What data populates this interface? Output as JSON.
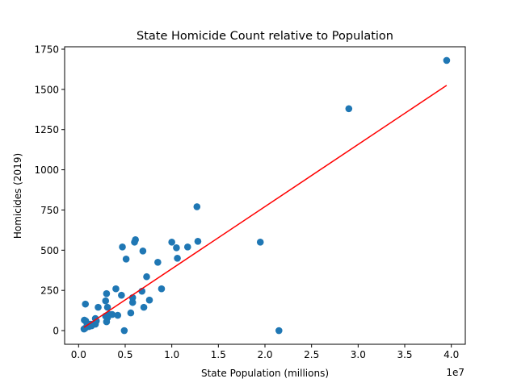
{
  "chart_data": {
    "type": "scatter",
    "title": "State Homicide Count relative to Population",
    "xlabel": "State Population (millions)",
    "ylabel": "Homicides (2019)",
    "x_offset_text": "1e7",
    "xlim": [
      -1500000,
      41500000
    ],
    "ylim": [
      -85,
      1765
    ],
    "xticks": [
      0,
      5000000,
      10000000,
      15000000,
      20000000,
      25000000,
      30000000,
      35000000,
      40000000
    ],
    "xtick_labels": [
      "0.0",
      "0.5",
      "1.0",
      "1.5",
      "2.0",
      "2.5",
      "3.0",
      "3.5",
      "4.0"
    ],
    "yticks": [
      0,
      250,
      500,
      750,
      1000,
      1250,
      1500,
      1750
    ],
    "ytick_labels": [
      "0",
      "250",
      "500",
      "750",
      "1000",
      "1250",
      "1500",
      "1750"
    ],
    "grid": false,
    "series": [
      {
        "type": "scatter",
        "color": "#1f77b4",
        "points": [
          [
            39500000,
            1680
          ],
          [
            29000000,
            1380
          ],
          [
            21500000,
            0
          ],
          [
            19500000,
            550
          ],
          [
            12800000,
            555
          ],
          [
            12700000,
            770
          ],
          [
            11700000,
            520
          ],
          [
            10600000,
            450
          ],
          [
            10500000,
            515
          ],
          [
            10000000,
            550
          ],
          [
            8900000,
            260
          ],
          [
            8500000,
            425
          ],
          [
            7600000,
            190
          ],
          [
            7300000,
            335
          ],
          [
            7000000,
            145
          ],
          [
            6900000,
            495
          ],
          [
            6800000,
            245
          ],
          [
            6100000,
            565
          ],
          [
            6000000,
            550
          ],
          [
            5800000,
            205
          ],
          [
            5800000,
            175
          ],
          [
            5600000,
            110
          ],
          [
            5100000,
            445
          ],
          [
            4900000,
            0
          ],
          [
            4700000,
            520
          ],
          [
            4600000,
            220
          ],
          [
            4200000,
            95
          ],
          [
            4000000,
            260
          ],
          [
            3600000,
            100
          ],
          [
            3300000,
            100
          ],
          [
            3100000,
            145
          ],
          [
            3100000,
            80
          ],
          [
            3000000,
            55
          ],
          [
            3000000,
            230
          ],
          [
            2900000,
            185
          ],
          [
            2900000,
            90
          ],
          [
            2100000,
            145
          ],
          [
            1900000,
            60
          ],
          [
            1800000,
            40
          ],
          [
            1800000,
            75
          ],
          [
            1400000,
            30
          ],
          [
            1300000,
            40
          ],
          [
            1100000,
            25
          ],
          [
            900000,
            45
          ],
          [
            760000,
            60
          ],
          [
            730000,
            165
          ],
          [
            700000,
            15
          ],
          [
            620000,
            65
          ],
          [
            580000,
            10
          ]
        ]
      },
      {
        "type": "line",
        "color": "#ff0000",
        "points": [
          [
            580000,
            20
          ],
          [
            39500000,
            1525
          ]
        ]
      }
    ]
  }
}
